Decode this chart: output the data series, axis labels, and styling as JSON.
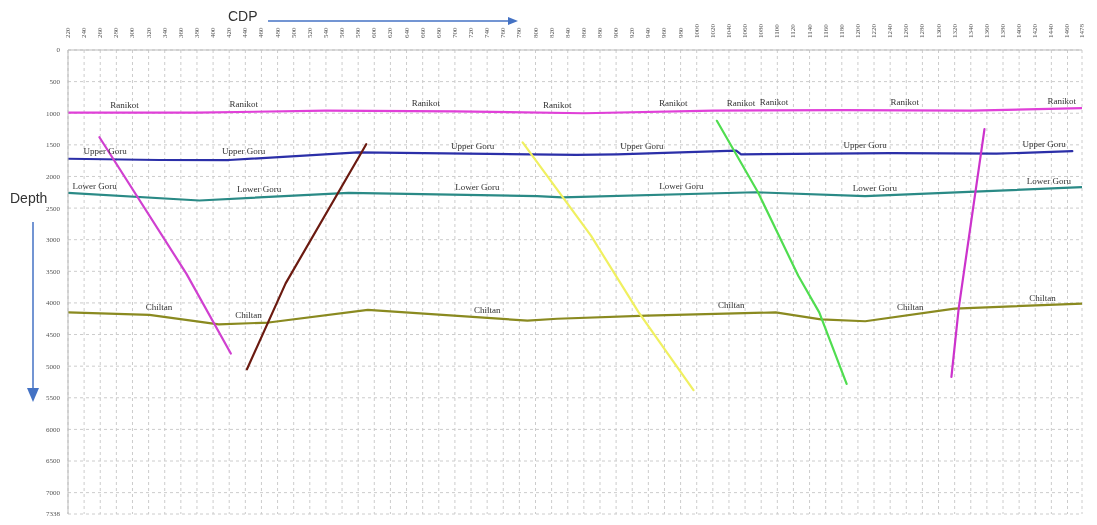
{
  "chart_data": {
    "type": "line",
    "title": "CDP",
    "ylabel": "Depth",
    "marker": "none",
    "grid": true,
    "xlim": [
      220,
      1478
    ],
    "xticks": [
      220,
      240,
      260,
      280,
      300,
      320,
      340,
      360,
      380,
      400,
      420,
      440,
      460,
      480,
      500,
      520,
      540,
      560,
      580,
      600,
      620,
      640,
      660,
      680,
      700,
      720,
      740,
      760,
      780,
      800,
      820,
      840,
      860,
      880,
      900,
      920,
      940,
      960,
      980,
      1000,
      1020,
      1040,
      1060,
      1080,
      1100,
      1120,
      1140,
      1160,
      1180,
      1200,
      1220,
      1240,
      1260,
      1280,
      1300,
      1320,
      1340,
      1360,
      1380,
      1400,
      1420,
      1440,
      1460,
      1478
    ],
    "ylim": [
      7338,
      0
    ],
    "yticks": [
      0,
      500,
      1000,
      1500,
      2000,
      2500,
      3000,
      3500,
      4000,
      4500,
      5000,
      5500,
      6000,
      6500,
      7000,
      7338
    ],
    "series": [
      {
        "color": "#e040d8",
        "x": [
          220,
          380,
          540,
          700,
          860,
          1020,
          1180,
          1340,
          1478
        ],
        "values": [
          990,
          990,
          960,
          970,
          1000,
          960,
          950,
          960,
          920
        ]
      },
      {
        "color": "#2b2fa8",
        "x": [
          220,
          333,
          420,
          580,
          851,
          901,
          1049,
          1055,
          1241,
          1372,
          1466
        ],
        "values": [
          1720,
          1740,
          1740,
          1620,
          1660,
          1650,
          1590,
          1650,
          1630,
          1640,
          1600
        ]
      },
      {
        "color": "#2a8a86",
        "x": [
          220,
          383,
          568,
          802,
          833,
          1073,
          1209,
          1345,
          1478
        ],
        "values": [
          2260,
          2380,
          2260,
          2310,
          2330,
          2250,
          2310,
          2240,
          2170
        ]
      },
      {
        "color": "#8a8a20",
        "x": [
          220,
          321,
          407,
          469,
          592,
          790,
          827,
          938,
          1098,
          1154,
          1209,
          1320,
          1478
        ],
        "values": [
          4150,
          4190,
          4340,
          4310,
          4110,
          4280,
          4250,
          4200,
          4150,
          4260,
          4290,
          4090,
          4010
        ]
      },
      {
        "color": "#d040d0",
        "x": [
          259,
          367,
          422
        ],
        "values": [
          1380,
          3540,
          4800
        ]
      },
      {
        "color": "#6b1a10",
        "x": [
          442,
          490,
          590
        ],
        "values": [
          5050,
          3690,
          1490
        ]
      },
      {
        "color": "#f0f060",
        "x": [
          784,
          869,
          928,
          996
        ],
        "values": [
          1460,
          2940,
          4150,
          5380
        ]
      },
      {
        "color": "#50dd50",
        "x": [
          1025,
          1076,
          1126,
          1152,
          1186
        ],
        "values": [
          1120,
          2250,
          3570,
          4150,
          5280
        ]
      },
      {
        "color": "#cc33cc",
        "x": [
          1357,
          1325,
          1316
        ],
        "values": [
          1250,
          4090,
          5170
        ]
      }
    ],
    "annotations": [
      {
        "text": "Ranikot",
        "x": 290,
        "y": 990
      },
      {
        "text": "Ranikot",
        "x": 438,
        "y": 980
      },
      {
        "text": "Ranikot",
        "x": 664,
        "y": 965
      },
      {
        "text": "Ranikot",
        "x": 827,
        "y": 992
      },
      {
        "text": "Ranikot",
        "x": 971,
        "y": 972
      },
      {
        "text": "Ranikot",
        "x": 1055,
        "y": 958
      },
      {
        "text": "Ranikot",
        "x": 1096,
        "y": 955
      },
      {
        "text": "Ranikot",
        "x": 1258,
        "y": 955
      },
      {
        "text": "Ranikot",
        "x": 1453,
        "y": 927
      },
      {
        "text": "Upper Goru",
        "x": 266,
        "y": 1728
      },
      {
        "text": "Upper Goru",
        "x": 438,
        "y": 1727
      },
      {
        "text": "Upper Goru",
        "x": 722,
        "y": 1641
      },
      {
        "text": "Upper Goru",
        "x": 932,
        "y": 1637
      },
      {
        "text": "Upper Goru",
        "x": 1209,
        "y": 1634
      },
      {
        "text": "Upper Goru",
        "x": 1431,
        "y": 1621
      },
      {
        "text": "Lower Goru",
        "x": 253,
        "y": 2284
      },
      {
        "text": "Lower Goru",
        "x": 457,
        "y": 2326
      },
      {
        "text": "Lower Goru",
        "x": 728,
        "y": 2294
      },
      {
        "text": "Lower Goru",
        "x": 981,
        "y": 2280
      },
      {
        "text": "Lower Goru",
        "x": 1221,
        "y": 2304
      },
      {
        "text": "Lower Goru",
        "x": 1437,
        "y": 2193
      },
      {
        "text": "Chiltan",
        "x": 333,
        "y": 4196
      },
      {
        "text": "Chiltan",
        "x": 444,
        "y": 4321
      },
      {
        "text": "Chiltan",
        "x": 740,
        "y": 4237
      },
      {
        "text": "Chiltan",
        "x": 1043,
        "y": 4167
      },
      {
        "text": "Chiltan",
        "x": 1265,
        "y": 4189
      },
      {
        "text": "Chiltan",
        "x": 1429,
        "y": 4051
      }
    ]
  }
}
